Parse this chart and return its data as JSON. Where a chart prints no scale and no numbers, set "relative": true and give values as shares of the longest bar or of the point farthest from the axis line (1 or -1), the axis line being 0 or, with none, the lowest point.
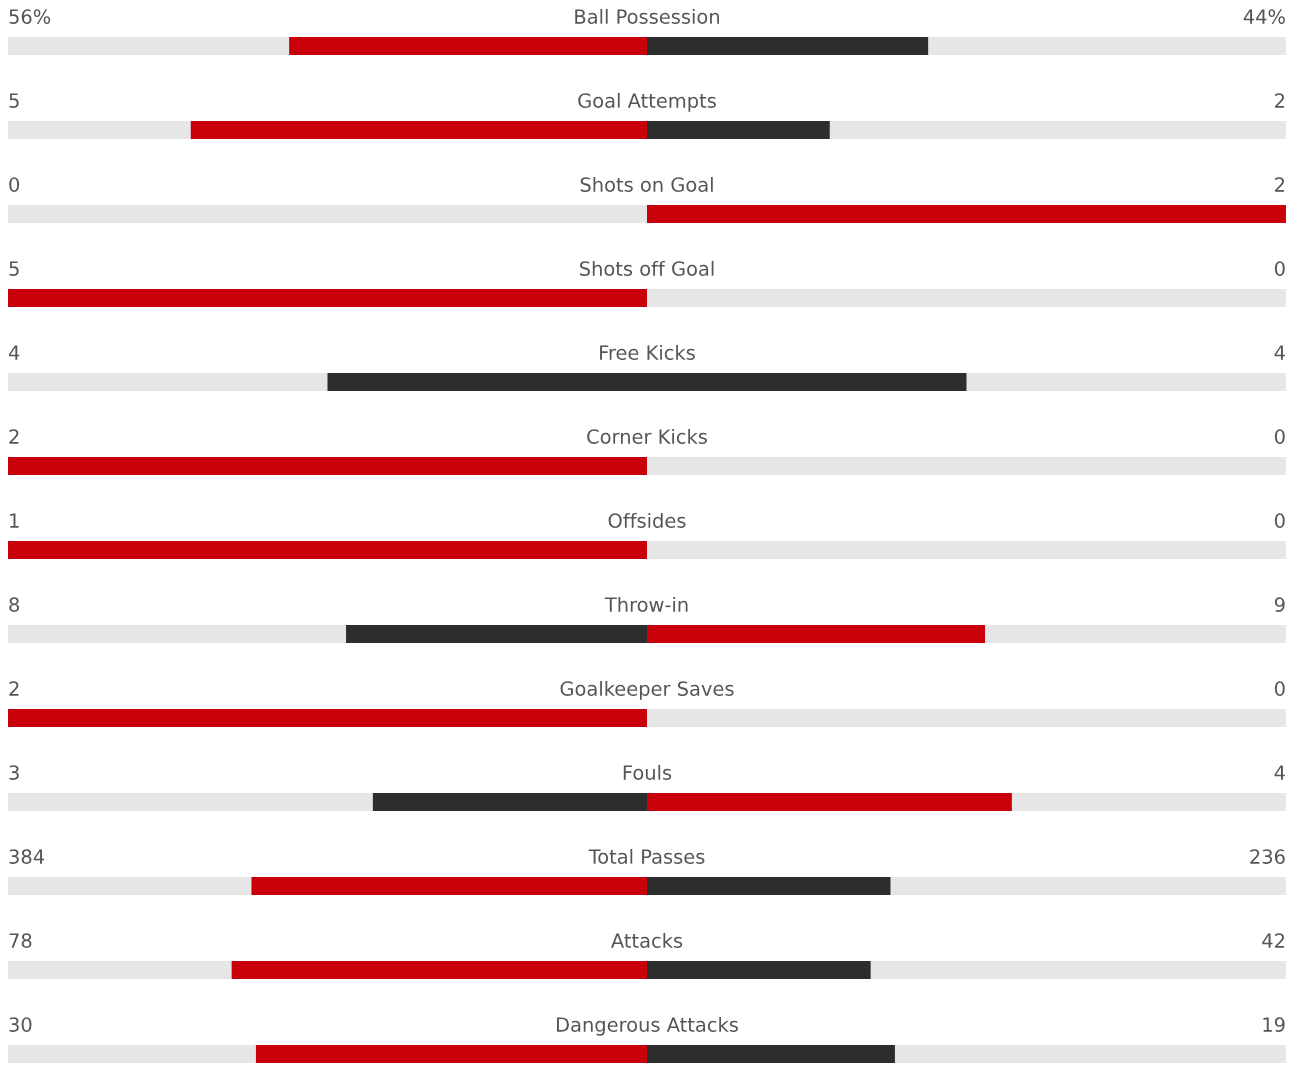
{
  "chart_data": {
    "type": "bar",
    "orientation": "horizontal",
    "relative": true,
    "stacked": true,
    "categories": [
      "Ball Possession",
      "Goal Attempts",
      "Shots on Goal",
      "Shots off Goal",
      "Free Kicks",
      "Corner Kicks",
      "Offsides",
      "Throw-in",
      "Goalkeeper Saves",
      "Fouls",
      "Total Passes",
      "Attacks",
      "Dangerous Attacks"
    ],
    "series": [
      {
        "values": [
          -0.56,
          -0.714,
          0,
          -1,
          -0.5,
          -1,
          -1,
          -0.471,
          -1,
          -0.429,
          -0.619,
          -0.65,
          -0.612
        ],
        "colors": [
          "#c8000a",
          "#c8000a",
          "#2d2d2d",
          "#c8000a",
          "#2d2d2d",
          "#c8000a",
          "#c8000a",
          "#2d2d2d",
          "#c8000a",
          "#2d2d2d",
          "#c8000a",
          "#c8000a",
          "#c8000a"
        ]
      },
      {
        "values": [
          0.44,
          0.286,
          1,
          0,
          0.5,
          0,
          0,
          0.529,
          0,
          0.571,
          0.381,
          0.35,
          0.388
        ],
        "colors": [
          "#2d2d2d",
          "#2d2d2d",
          "#c8000a",
          "#2d2d2d",
          "#2d2d2d",
          "#2d2d2d",
          "#2d2d2d",
          "#c8000a",
          "#2d2d2d",
          "#c8000a",
          "#2d2d2d",
          "#2d2d2d",
          "#2d2d2d"
        ]
      }
    ],
    "annotations": [
      "56%",
      "44%",
      "5",
      "2",
      "0",
      "2",
      "5",
      "0",
      "4",
      "4",
      "2",
      "0",
      "1",
      "0",
      "8",
      "9",
      "2",
      "0",
      "3",
      "4",
      "384",
      "236",
      "78",
      "42",
      "30",
      "19"
    ]
  }
}
